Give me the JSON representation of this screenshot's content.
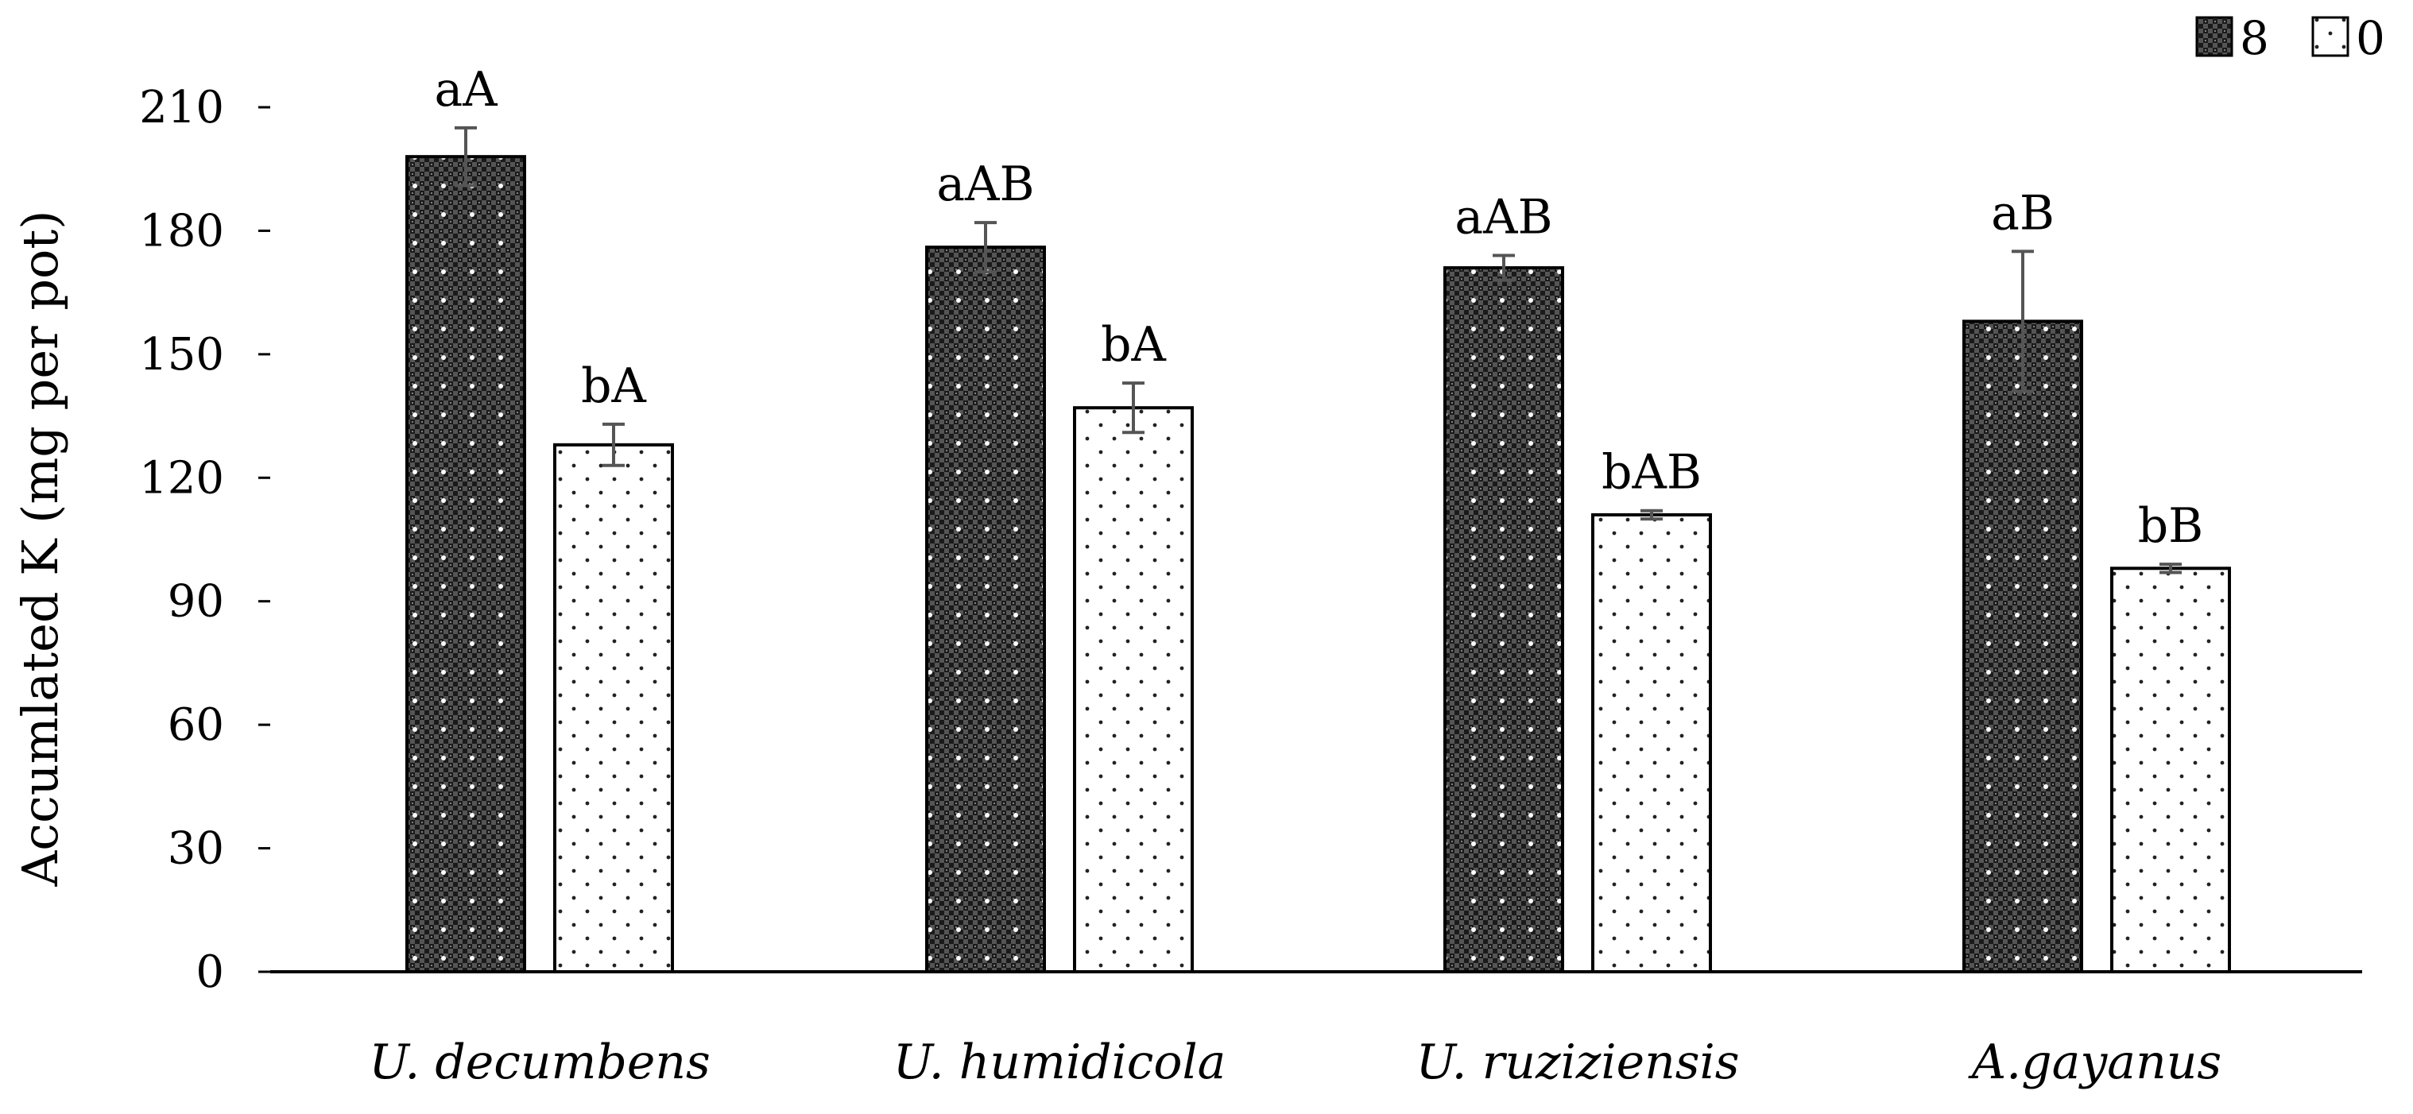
{
  "chart_data": {
    "type": "bar",
    "title": "",
    "xlabel": "",
    "ylabel": "Accumlated K (mg per pot)",
    "ylim": [
      0,
      210
    ],
    "yticks": [
      0,
      30,
      60,
      90,
      120,
      150,
      180,
      210
    ],
    "grid": false,
    "legend_position": "top-right",
    "categories": [
      "U. decumbens",
      "U. humidicola",
      "U. ruziziensis",
      "A.gayanus"
    ],
    "series": [
      {
        "name": "8",
        "pattern": "dense-checker",
        "values": [
          198,
          176,
          171,
          158
        ],
        "errors": [
          7,
          6,
          3,
          17
        ],
        "labels": [
          "aA",
          "aAB",
          "aAB",
          "aB"
        ]
      },
      {
        "name": "0",
        "pattern": "sparse-dots",
        "values": [
          128,
          137,
          111,
          98
        ],
        "errors": [
          5,
          6,
          1,
          1
        ],
        "labels": [
          "bA",
          "bA",
          "bAB",
          "bB"
        ]
      }
    ],
    "colors": {
      "bar_outline": "#000000",
      "error_bar": "#555555",
      "axis": "#000000"
    }
  }
}
